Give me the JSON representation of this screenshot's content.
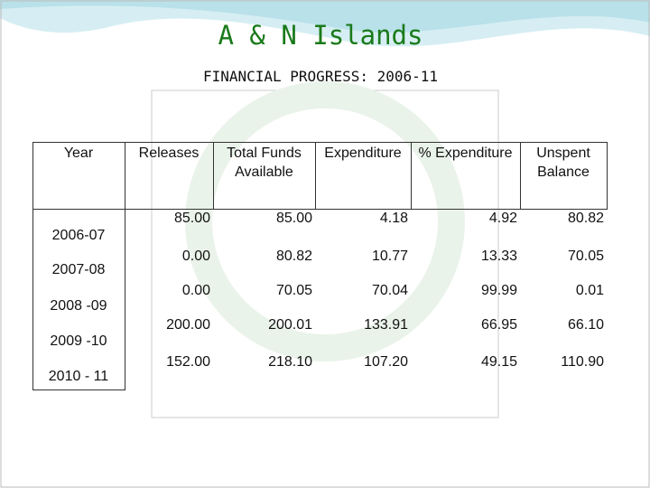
{
  "title": "A & N Islands",
  "subtitle": "FINANCIAL PROGRESS: 2006-11",
  "table": {
    "header": [
      "Year",
      "Releases",
      "Total Funds Available",
      "Expenditure",
      "% Expenditure",
      "Unspent Balance"
    ],
    "rows": [
      [
        "2006-07",
        "85.00",
        "85.00",
        "4.18",
        "4.92",
        "80.82"
      ],
      [
        "2007-08",
        "0.00",
        "80.82",
        "10.77",
        "13.33",
        "70.05"
      ],
      [
        "2008 -09",
        "0.00",
        "70.05",
        "70.04",
        "99.99",
        "0.01"
      ],
      [
        "2009 -10",
        "200.00",
        "200.01",
        "133.91",
        "66.95",
        "66.10"
      ],
      [
        "2010 - 11",
        "152.00",
        "218.10",
        "107.20",
        "49.15",
        "110.90"
      ]
    ]
  }
}
